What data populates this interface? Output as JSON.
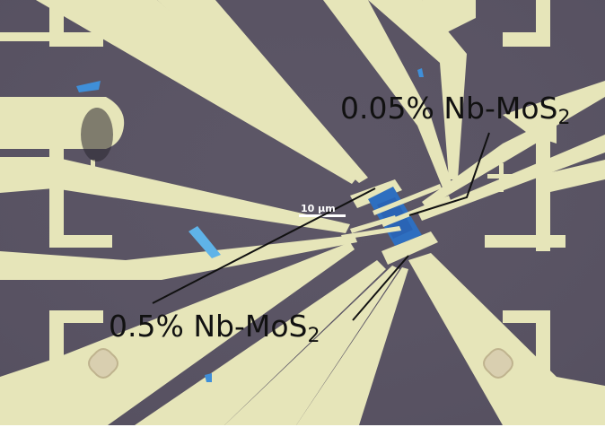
{
  "image": {
    "description_colors": {
      "substrate": "#5a5464",
      "electrode": "#e6e5b9",
      "flake": "#2e6fc0",
      "frame": "#ffffff"
    }
  },
  "annotations": {
    "top_label": {
      "text": "0.05% Nb-MoS",
      "subscript": "2"
    },
    "bottom_label": {
      "text": "0.5% Nb-MoS",
      "subscript": "2"
    },
    "scale_bar": {
      "text": "10 μm"
    }
  }
}
